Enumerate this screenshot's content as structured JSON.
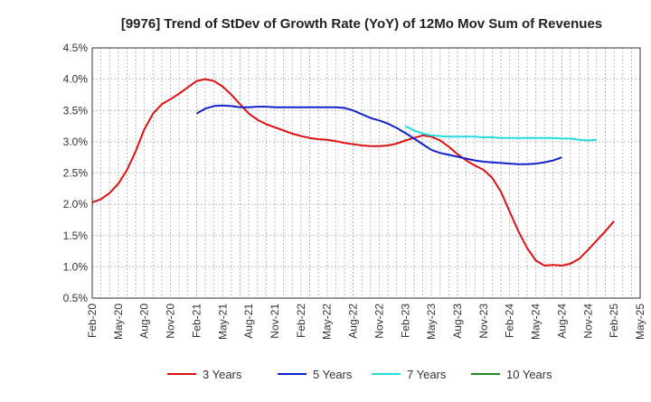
{
  "chart_data": {
    "type": "line",
    "title": "[9976]  Trend of StDev of Growth Rate (YoY) of 12Mo Mov Sum of Revenues",
    "xlabel": "",
    "ylabel": "",
    "ylim": [
      0.5,
      4.5
    ],
    "y_ticks": [
      "0.5%",
      "1.0%",
      "1.5%",
      "2.0%",
      "2.5%",
      "3.0%",
      "3.5%",
      "4.0%",
      "4.5%"
    ],
    "x_ticks": [
      "Feb-20",
      "May-20",
      "Aug-20",
      "Nov-20",
      "Feb-21",
      "May-21",
      "Aug-21",
      "Nov-21",
      "Feb-22",
      "May-22",
      "Aug-22",
      "Nov-22",
      "Feb-23",
      "May-23",
      "Aug-23",
      "Nov-23",
      "Feb-24",
      "May-24",
      "Aug-24",
      "Nov-24",
      "Feb-25",
      "May-25"
    ],
    "grid": true,
    "legend_position": "bottom",
    "series": [
      {
        "name": "3 Years",
        "color": "#dd1111",
        "start_index": 0,
        "values": [
          2.03,
          2.08,
          2.18,
          2.33,
          2.55,
          2.85,
          3.2,
          3.45,
          3.6,
          3.68,
          3.77,
          3.87,
          3.97,
          4.0,
          3.97,
          3.88,
          3.75,
          3.6,
          3.45,
          3.35,
          3.28,
          3.23,
          3.18,
          3.13,
          3.09,
          3.06,
          3.04,
          3.03,
          3.01,
          2.98,
          2.96,
          2.94,
          2.93,
          2.93,
          2.94,
          2.97,
          3.02,
          3.06,
          3.1,
          3.08,
          3.02,
          2.92,
          2.8,
          2.7,
          2.62,
          2.55,
          2.42,
          2.2,
          1.88,
          1.57,
          1.3,
          1.1,
          1.02,
          1.03,
          1.02,
          1.05,
          1.13,
          1.27,
          1.42,
          1.57,
          1.73
        ]
      },
      {
        "name": "5 Years",
        "color": "#1122cc",
        "start_index": 12,
        "values": [
          3.45,
          3.53,
          3.57,
          3.58,
          3.57,
          3.55,
          3.55,
          3.56,
          3.56,
          3.55,
          3.55,
          3.55,
          3.55,
          3.55,
          3.55,
          3.55,
          3.55,
          3.54,
          3.5,
          3.44,
          3.38,
          3.34,
          3.29,
          3.22,
          3.14,
          3.05,
          2.96,
          2.87,
          2.82,
          2.79,
          2.76,
          2.73,
          2.7,
          2.68,
          2.67,
          2.66,
          2.65,
          2.64,
          2.64,
          2.65,
          2.67,
          2.7,
          2.75
        ]
      },
      {
        "name": "7 Years",
        "color": "#22dddd",
        "start_index": 36,
        "values": [
          3.25,
          3.18,
          3.13,
          3.1,
          3.09,
          3.08,
          3.08,
          3.08,
          3.08,
          3.07,
          3.07,
          3.06,
          3.06,
          3.06,
          3.06,
          3.06,
          3.06,
          3.06,
          3.05,
          3.05,
          3.03,
          3.02,
          3.03
        ]
      },
      {
        "name": "10 Years",
        "color": "#228822",
        "start_index": 0,
        "values": []
      }
    ]
  }
}
